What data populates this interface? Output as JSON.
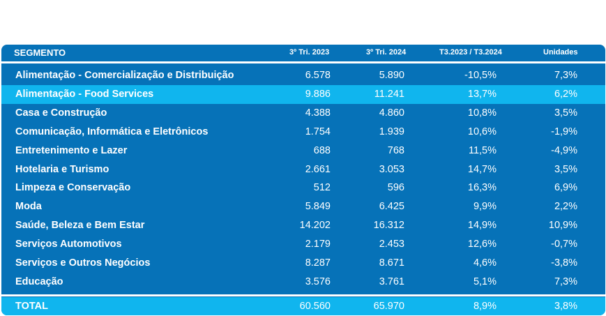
{
  "headers": {
    "segment": "SEGMENTO",
    "q3_2023": "3º Tri. 2023",
    "q3_2024": "3º Tri. 2024",
    "variation": "T3.2023 / T3.2024",
    "units": "Unidades"
  },
  "rows": [
    {
      "name": "Alimentação - Comercialização e Distribuição",
      "q3_2023": "6.578",
      "q3_2024": "5.890",
      "variation": "-10,5%",
      "units": "7,3%"
    },
    {
      "name": "Alimentação - Food Services",
      "q3_2023": "9.886",
      "q3_2024": "11.241",
      "variation": "13,7%",
      "units": "6,2%"
    },
    {
      "name": "Casa e Construção",
      "q3_2023": "4.388",
      "q3_2024": "4.860",
      "variation": "10,8%",
      "units": "3,5%"
    },
    {
      "name": "Comunicação, Informática e Eletrônicos",
      "q3_2023": "1.754",
      "q3_2024": "1.939",
      "variation": "10,6%",
      "units": "-1,9%"
    },
    {
      "name": "Entretenimento e Lazer",
      "q3_2023": "688",
      "q3_2024": "768",
      "variation": "11,5%",
      "units": "-4,9%"
    },
    {
      "name": "Hotelaria e Turismo",
      "q3_2023": "2.661",
      "q3_2024": "3.053",
      "variation": "14,7%",
      "units": "3,5%"
    },
    {
      "name": "Limpeza e Conservação",
      "q3_2023": "512",
      "q3_2024": "596",
      "variation": "16,3%",
      "units": "6,9%"
    },
    {
      "name": "Moda",
      "q3_2023": "5.849",
      "q3_2024": "6.425",
      "variation": "9,9%",
      "units": "2,2%"
    },
    {
      "name": "Saúde, Beleza e Bem Estar",
      "q3_2023": "14.202",
      "q3_2024": "16.312",
      "variation": "14,9%",
      "units": "10,9%"
    },
    {
      "name": "Serviços Automotivos",
      "q3_2023": "2.179",
      "q3_2024": "2.453",
      "variation": "12,6%",
      "units": "-0,7%"
    },
    {
      "name": "Serviços e Outros Negócios",
      "q3_2023": "8.287",
      "q3_2024": "8.671",
      "variation": "4,6%",
      "units": "-3,8%"
    },
    {
      "name": "Educação",
      "q3_2023": "3.576",
      "q3_2024": "3.761",
      "variation": "5,1%",
      "units": "7,3%"
    }
  ],
  "total": {
    "name": "TOTAL",
    "q3_2023": "60.560",
    "q3_2024": "65.970",
    "variation": "8,9%",
    "units": "3,8%"
  },
  "colors": {
    "dark_row": "#0672b8",
    "light_row": "#10b5ee",
    "text": "#ffffff"
  }
}
